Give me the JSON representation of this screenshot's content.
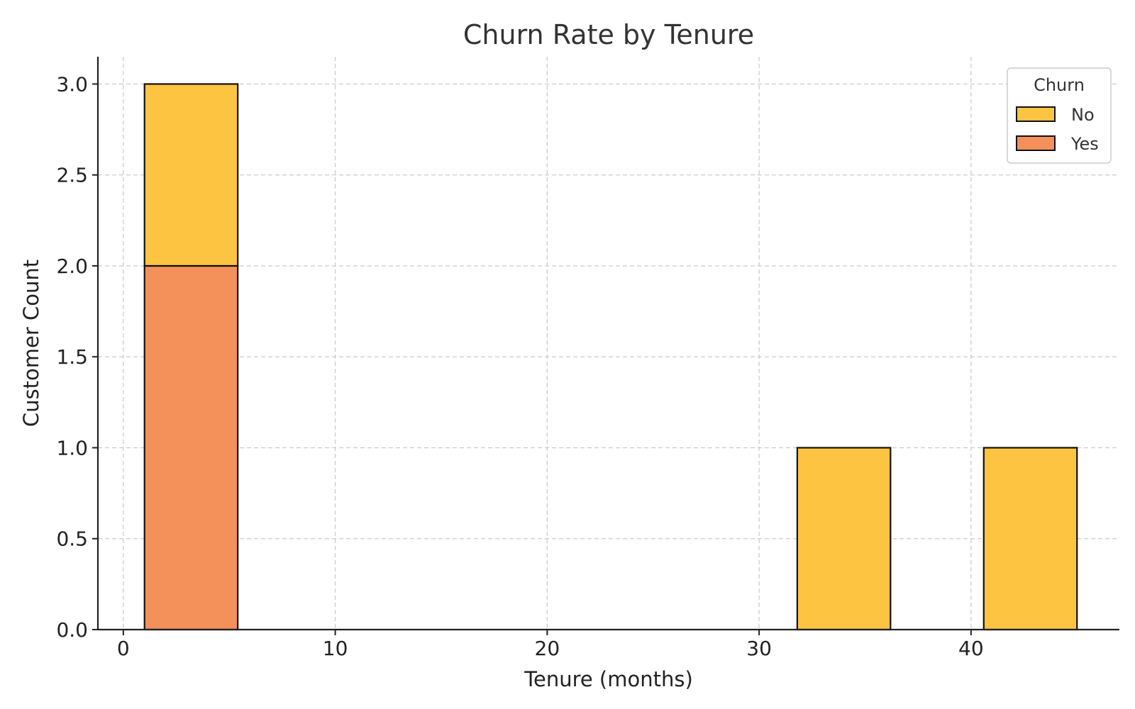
{
  "chart_data": {
    "type": "bar",
    "stacked": true,
    "title": "Churn Rate by Tenure",
    "xlabel": "Tenure (months)",
    "ylabel": "Customer Count",
    "xlim": [
      -1.2,
      47
    ],
    "ylim": [
      0,
      3.15
    ],
    "xticks": [
      0,
      10,
      20,
      30,
      40
    ],
    "yticks": [
      0.0,
      0.5,
      1.0,
      1.5,
      2.0,
      2.5,
      3.0
    ],
    "ytick_labels": [
      "0.0",
      "0.5",
      "1.0",
      "1.5",
      "2.0",
      "2.5",
      "3.0"
    ],
    "grid": true,
    "bins": [
      {
        "x0": 1,
        "x1": 5.4
      },
      {
        "x0": 31.8,
        "x1": 36.2
      },
      {
        "x0": 40.6,
        "x1": 45
      }
    ],
    "series": [
      {
        "name": "Yes",
        "color": "#F4905A",
        "values": [
          2,
          0,
          0
        ]
      },
      {
        "name": "No",
        "color": "#FDC441",
        "values": [
          1,
          1,
          1
        ]
      }
    ],
    "legend": {
      "title": "Churn",
      "position": "top-right",
      "entries": [
        {
          "label": "No",
          "color": "#FDC441"
        },
        {
          "label": "Yes",
          "color": "#F4905A"
        }
      ]
    }
  }
}
